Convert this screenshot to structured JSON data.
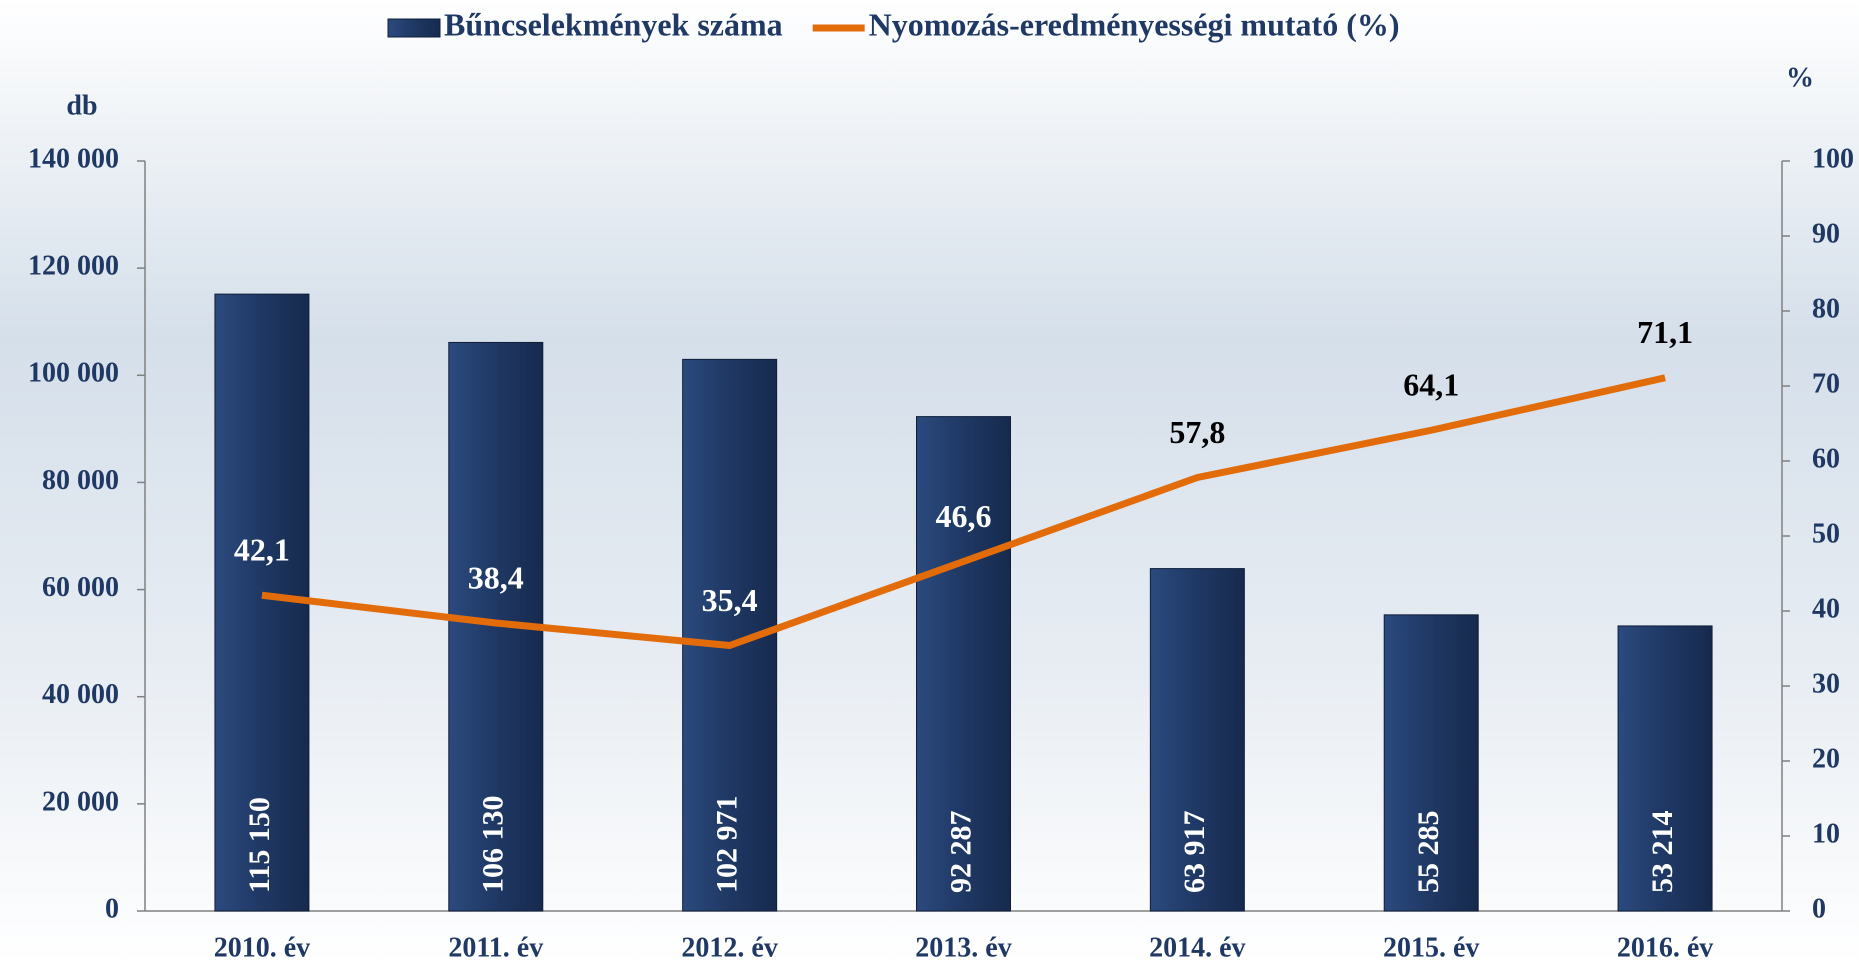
{
  "chart_data": {
    "type": "bar",
    "legend": "top",
    "categories": [
      "2010. év",
      "2011. év",
      "2012. év",
      "2013. év",
      "2014. év",
      "2015. év",
      "2016. év"
    ],
    "y_label": "db",
    "y2_label": "%",
    "ylim": [
      0,
      140000
    ],
    "yticks": [
      {
        "value": 0,
        "label": "0"
      },
      {
        "value": 20000,
        "label": "20 000"
      },
      {
        "value": 40000,
        "label": "40 000"
      },
      {
        "value": 60000,
        "label": "60 000"
      },
      {
        "value": 80000,
        "label": "80 000"
      },
      {
        "value": 100000,
        "label": "100 000"
      },
      {
        "value": 120000,
        "label": "120 000"
      },
      {
        "value": 140000,
        "label": "140 000"
      }
    ],
    "y2lim": [
      0,
      100
    ],
    "y2ticks": [
      0,
      10,
      20,
      30,
      40,
      50,
      60,
      70,
      80,
      90,
      100
    ],
    "series": [
      {
        "name": "Bűncselekmények száma",
        "type": "bar",
        "color": "#1f3864",
        "values": [
          115150,
          106130,
          102971,
          92287,
          63917,
          55285,
          53214
        ],
        "value_labels": [
          "115 150",
          "106 130",
          "102 971",
          "92 287",
          "63 917",
          "55 285",
          "53 214"
        ]
      },
      {
        "name": "Nyomozás-eredményességi mutató (%)",
        "type": "line",
        "axis": "y2",
        "color": "#e36c0a",
        "values": [
          42.1,
          38.4,
          35.4,
          46.6,
          57.8,
          64.1,
          71.1
        ],
        "value_labels": [
          "42,1",
          "38,4",
          "35,4",
          "46,6",
          "57,8",
          "64,1",
          "71,1"
        ]
      }
    ]
  }
}
